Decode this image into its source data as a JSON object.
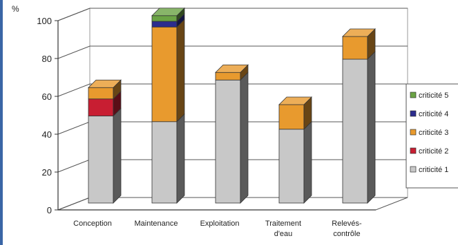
{
  "chart_data": {
    "type": "bar",
    "stacked": true,
    "three_d": true,
    "y_unit": "%",
    "ylim": [
      0,
      100
    ],
    "yticks": [
      0,
      20,
      40,
      60,
      80,
      100
    ],
    "grid": true,
    "legend_position": "right",
    "categories": [
      "Conception",
      "Maintenance",
      "Exploitation",
      "Traitement d'eau",
      "Relevés-contrôle"
    ],
    "category_lines": [
      [
        "Conception"
      ],
      [
        "Maintenance"
      ],
      [
        "Exploitation"
      ],
      [
        "Traitement",
        "d'eau"
      ],
      [
        "Relevés-",
        "contrôle"
      ]
    ],
    "series": [
      {
        "name": "criticité 1",
        "color": "#c8c8c8",
        "values": [
          46,
          43,
          65,
          39,
          76
        ]
      },
      {
        "name": "criticité 2",
        "color": "#c81e32",
        "values": [
          9,
          0,
          0,
          0,
          0
        ]
      },
      {
        "name": "criticité 3",
        "color": "#e89a2e",
        "values": [
          6,
          50,
          4,
          13,
          12
        ]
      },
      {
        "name": "criticité 4",
        "color": "#2b2c8e",
        "values": [
          0,
          3,
          0,
          0,
          0
        ]
      },
      {
        "name": "criticité 5",
        "color": "#6aa344",
        "values": [
          0,
          3,
          0,
          0,
          0
        ]
      }
    ],
    "legend_order": [
      "criticité 5",
      "criticité 4",
      "criticité 3",
      "criticité 2",
      "criticité 1"
    ]
  }
}
